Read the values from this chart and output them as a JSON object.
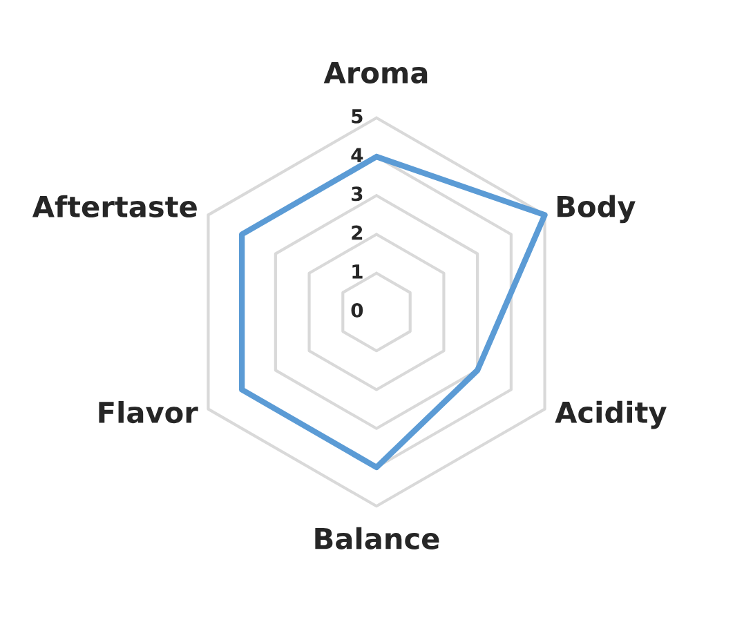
{
  "chart_data": {
    "type": "radar",
    "categories": [
      "Aroma",
      "Body",
      "Acidity",
      "Balance",
      "Flavor",
      "Aftertaste"
    ],
    "series": [
      {
        "color": "#5b9bd5",
        "values": [
          4,
          5,
          3,
          4,
          4,
          4
        ]
      }
    ],
    "ylim": [
      0,
      5
    ],
    "yticks": [
      0,
      1,
      2,
      3,
      4,
      5
    ],
    "grid": true
  }
}
